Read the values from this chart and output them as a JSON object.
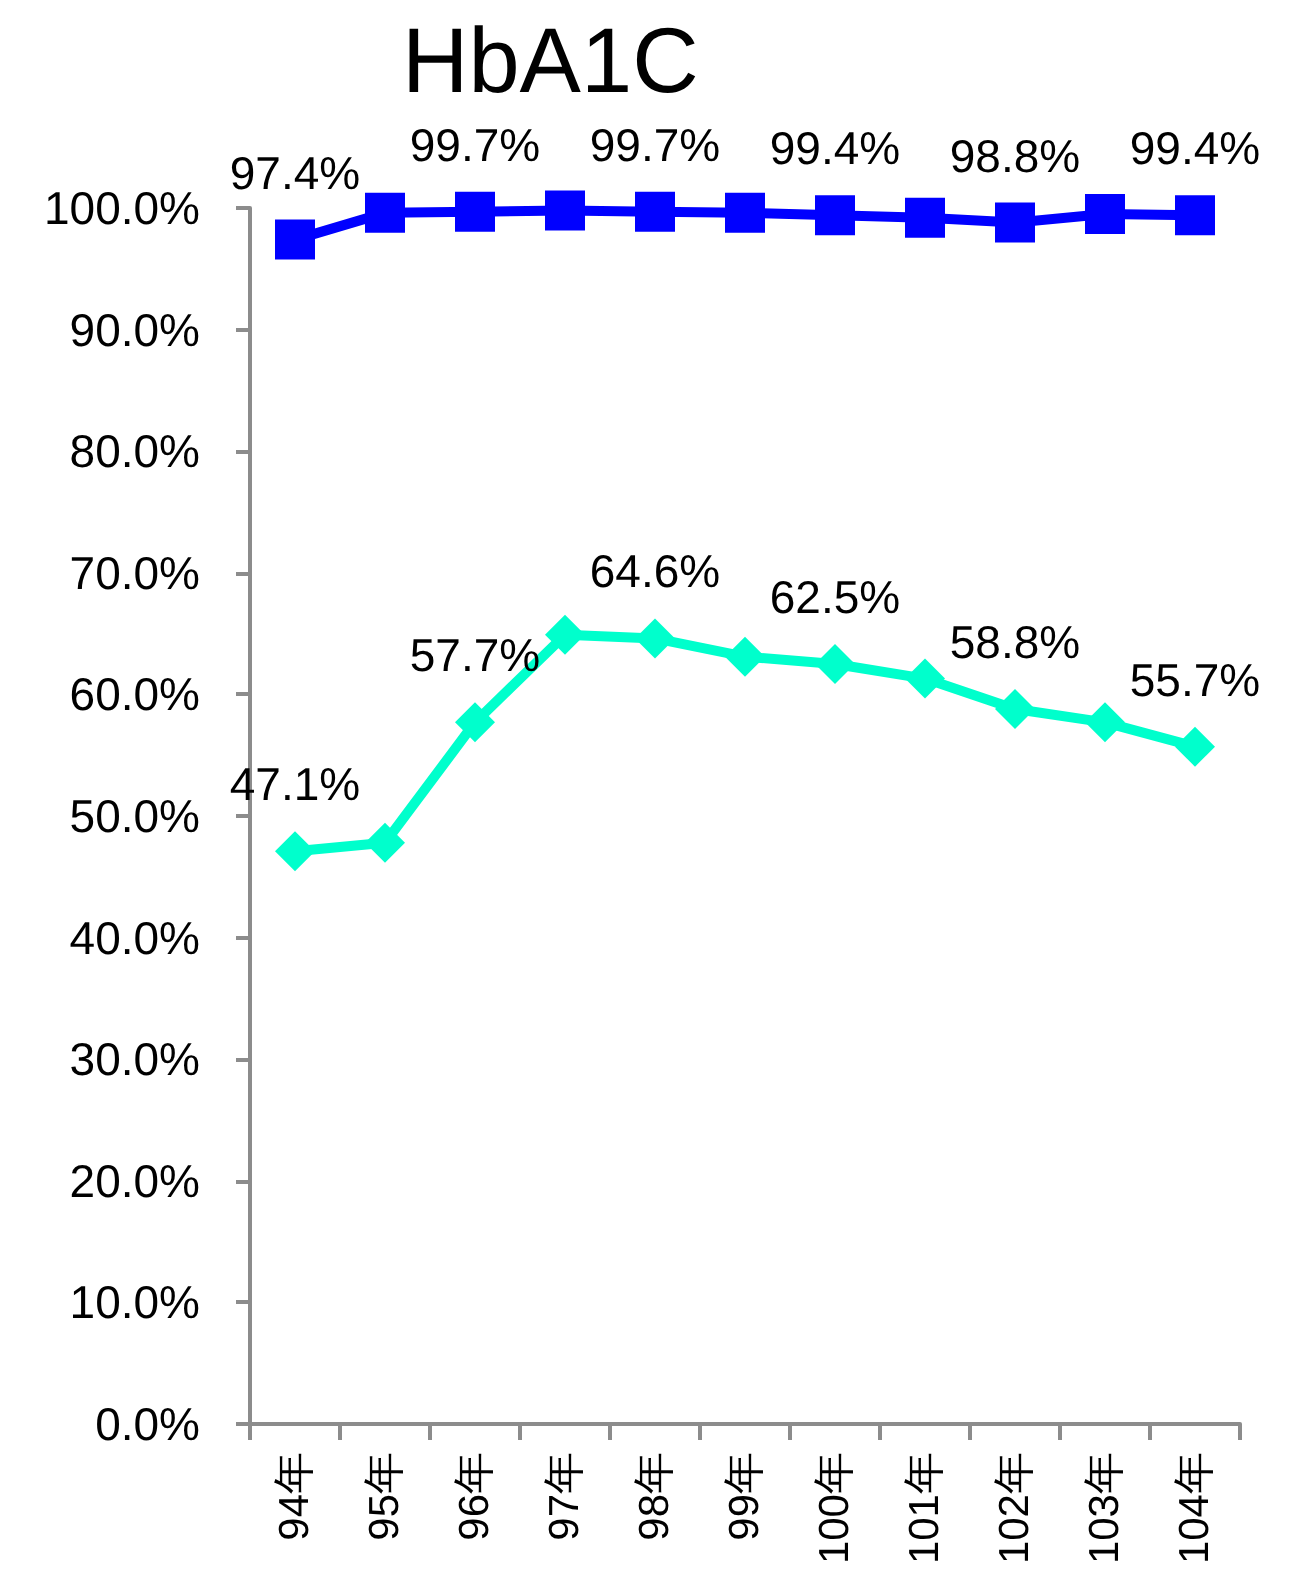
{
  "chart_data": {
    "type": "line",
    "title": "HbA1C",
    "categories": [
      "94年",
      "95年",
      "96年",
      "97年",
      "98年",
      "99年",
      "100年",
      "101年",
      "102年",
      "103年",
      "104年"
    ],
    "series": [
      {
        "color": "#0000ff",
        "marker": "square",
        "values": [
          97.4,
          99.6,
          99.7,
          99.8,
          99.7,
          99.6,
          99.4,
          99.2,
          98.8,
          99.5,
          99.4
        ],
        "value_labels": [
          "97.4%",
          null,
          "99.7%",
          null,
          "99.7%",
          null,
          "99.4%",
          null,
          "98.8%",
          null,
          "99.4%"
        ]
      },
      {
        "color": "#00ffcc",
        "marker": "diamond",
        "values": [
          47.1,
          47.8,
          57.7,
          64.9,
          64.6,
          63.1,
          62.5,
          61.3,
          58.8,
          57.7,
          55.7
        ],
        "value_labels": [
          "47.1%",
          null,
          "57.7%",
          null,
          "64.6%",
          null,
          "62.5%",
          null,
          "58.8%",
          null,
          "55.7%"
        ]
      }
    ],
    "ylim": [
      0,
      100
    ],
    "yticks": [
      {
        "value": 0,
        "label": "0.0%"
      },
      {
        "value": 10,
        "label": "10.0%"
      },
      {
        "value": 20,
        "label": "20.0%"
      },
      {
        "value": 30,
        "label": "30.0%"
      },
      {
        "value": 40,
        "label": "40.0%"
      },
      {
        "value": 50,
        "label": "50.0%"
      },
      {
        "value": 60,
        "label": "60.0%"
      },
      {
        "value": 70,
        "label": "70.0%"
      },
      {
        "value": 80,
        "label": "80.0%"
      },
      {
        "value": 90,
        "label": "90.0%"
      },
      {
        "value": 100,
        "label": "100.0%"
      }
    ],
    "grid": false,
    "line_style": "solid"
  }
}
